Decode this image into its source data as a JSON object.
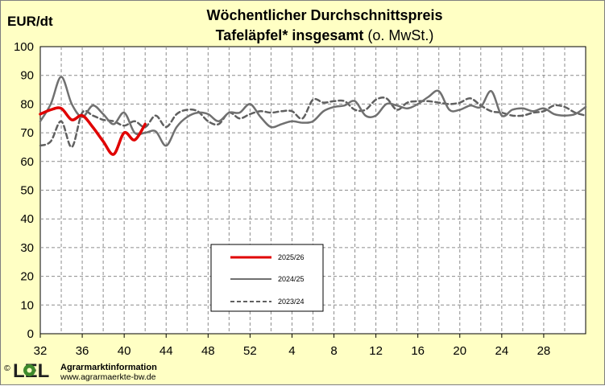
{
  "chart_data": {
    "type": "line",
    "title": "Wöchentlicher Durchschnittspreis",
    "subtitle_bold": "Tafeläpfel* insgesamt",
    "subtitle_normal": "(o. MwSt.)",
    "ylabel": "EUR/dt",
    "ylim": [
      0,
      100
    ],
    "y_ticks": [
      "0",
      "10",
      "20",
      "30",
      "40",
      "50",
      "60",
      "70",
      "80",
      "90",
      "100"
    ],
    "x_ticks": [
      "32",
      "36",
      "40",
      "44",
      "48",
      "52",
      "4",
      "8",
      "12",
      "16",
      "20",
      "24",
      "28"
    ],
    "grid": true,
    "legend_placement": "lower-center",
    "series": [
      {
        "name": "2025/26",
        "color": "#e00000",
        "style": "solid",
        "values": [
          76.5,
          78.0,
          78.5,
          74.5,
          76.0,
          72.0,
          67.0,
          62.5,
          70.0,
          67.5,
          73.0
        ]
      },
      {
        "name": "2024/25",
        "color": "#707070",
        "style": "solid",
        "values": [
          74.0,
          80.0,
          89.5,
          80.0,
          75.5,
          79.5,
          76.5,
          73.0,
          77.0,
          70.0,
          70.0,
          70.5,
          65.5,
          72.0,
          75.5,
          77.0,
          76.5,
          74.0,
          77.0,
          77.0,
          80.0,
          75.5,
          72.0,
          73.0,
          74.0,
          73.5,
          74.0,
          77.5,
          79.0,
          79.5,
          81.0,
          76.0,
          76.0,
          80.0,
          79.5,
          78.5,
          80.0,
          82.5,
          84.5,
          78.0,
          78.0,
          79.5,
          79.0,
          84.5,
          76.0,
          78.0,
          78.5,
          77.5,
          78.5,
          76.5,
          76.0,
          76.5,
          79.0
        ]
      },
      {
        "name": "2023/24",
        "color": "#606060",
        "style": "dashed",
        "values": [
          65.5,
          67.0,
          74.0,
          65.0,
          77.0,
          76.0,
          74.5,
          74.0,
          72.5,
          74.0,
          72.0,
          76.0,
          72.0,
          76.5,
          78.0,
          77.5,
          74.0,
          73.0,
          77.0,
          75.0,
          76.5,
          77.5,
          77.0,
          77.5,
          77.5,
          75.0,
          81.5,
          80.5,
          81.0,
          81.0,
          78.0,
          78.0,
          81.5,
          82.0,
          78.0,
          80.5,
          81.0,
          81.0,
          80.5,
          80.0,
          80.5,
          82.0,
          79.5,
          77.5,
          77.0,
          76.0,
          76.0,
          77.0,
          77.5,
          79.5,
          79.0,
          77.0,
          76.0
        ]
      }
    ]
  },
  "footer": {
    "copyright": "©",
    "logo_text": "LEL",
    "org_name": "Agrarmarktinformation",
    "website": "www.agrarmaerkte-bw.de"
  },
  "colors": {
    "background": "#ffffc4",
    "plot_background": "#ffffff",
    "grid": "#8c8c8c",
    "logo_green": "#3e8a2c",
    "logo_dark": "#1f1f1f"
  }
}
